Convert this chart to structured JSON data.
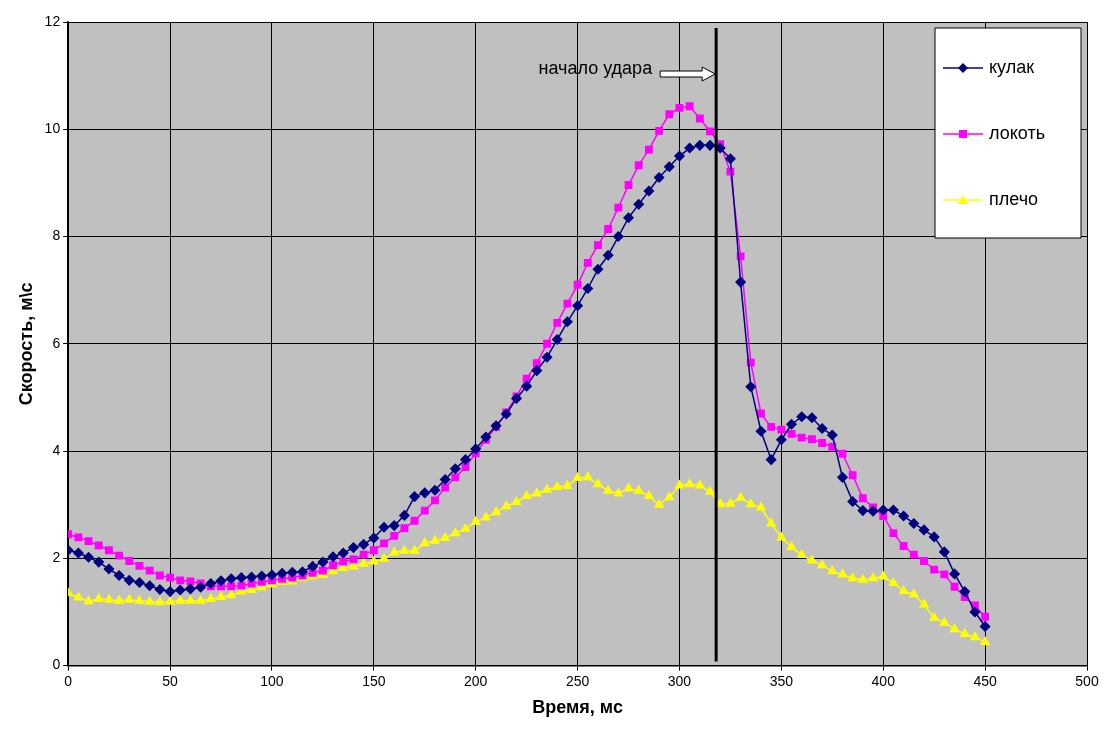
{
  "chart_data": {
    "type": "line",
    "xlabel": "Время, мс",
    "ylabel": "Скорость, м\\с",
    "x": [
      0,
      5,
      10,
      15,
      20,
      25,
      30,
      35,
      40,
      45,
      50,
      55,
      60,
      65,
      70,
      75,
      80,
      85,
      90,
      95,
      100,
      105,
      110,
      115,
      120,
      125,
      130,
      135,
      140,
      145,
      150,
      155,
      160,
      165,
      170,
      175,
      180,
      185,
      190,
      195,
      200,
      205,
      210,
      215,
      220,
      225,
      230,
      235,
      240,
      245,
      250,
      255,
      260,
      265,
      270,
      275,
      280,
      285,
      290,
      295,
      300,
      305,
      310,
      315,
      320,
      325,
      330,
      335,
      340,
      345,
      350,
      355,
      360,
      365,
      370,
      375,
      380,
      385,
      390,
      395,
      400,
      405,
      410,
      415,
      420,
      425,
      430,
      435,
      440,
      445,
      450
    ],
    "series": [
      {
        "name": "кулак",
        "color": "#000080",
        "marker": "diamond",
        "values": [
          2.15,
          2.1,
          2.02,
          1.93,
          1.8,
          1.68,
          1.59,
          1.55,
          1.49,
          1.42,
          1.38,
          1.41,
          1.43,
          1.46,
          1.53,
          1.58,
          1.62,
          1.64,
          1.65,
          1.67,
          1.69,
          1.72,
          1.74,
          1.75,
          1.85,
          1.93,
          2.03,
          2.1,
          2.2,
          2.26,
          2.38,
          2.58,
          2.61,
          2.8,
          3.15,
          3.22,
          3.27,
          3.47,
          3.67,
          3.84,
          4.04,
          4.26,
          4.47,
          4.69,
          4.98,
          5.21,
          5.5,
          5.75,
          6.08,
          6.41,
          6.71,
          7.03,
          7.39,
          7.65,
          8.0,
          8.35,
          8.6,
          8.85,
          9.1,
          9.3,
          9.5,
          9.65,
          9.7,
          9.7,
          9.65,
          9.45,
          7.15,
          5.2,
          4.37,
          3.84,
          4.21,
          4.5,
          4.64,
          4.62,
          4.42,
          4.3,
          3.51,
          3.06,
          2.89,
          2.88,
          2.9,
          2.9,
          2.79,
          2.65,
          2.53,
          2.4,
          2.12,
          1.71,
          1.38,
          1.0,
          0.73
        ]
      },
      {
        "name": "локоть",
        "color": "#ff00ff",
        "marker": "square",
        "values": [
          2.45,
          2.39,
          2.32,
          2.24,
          2.15,
          2.05,
          1.95,
          1.86,
          1.77,
          1.68,
          1.64,
          1.59,
          1.57,
          1.53,
          1.48,
          1.48,
          1.48,
          1.49,
          1.53,
          1.56,
          1.59,
          1.62,
          1.64,
          1.68,
          1.73,
          1.77,
          1.87,
          1.94,
          1.98,
          2.07,
          2.15,
          2.28,
          2.42,
          2.56,
          2.7,
          2.89,
          3.08,
          3.32,
          3.51,
          3.7,
          3.96,
          4.21,
          4.45,
          4.72,
          5.02,
          5.35,
          5.64,
          6.0,
          6.39,
          6.75,
          7.1,
          7.51,
          7.84,
          8.14,
          8.54,
          8.96,
          9.33,
          9.62,
          9.97,
          10.28,
          10.4,
          10.43,
          10.2,
          9.96,
          9.72,
          9.21,
          7.63,
          5.65,
          4.7,
          4.45,
          4.4,
          4.32,
          4.25,
          4.22,
          4.15,
          4.08,
          3.95,
          3.55,
          3.12,
          2.95,
          2.79,
          2.47,
          2.23,
          2.07,
          1.95,
          1.79,
          1.7,
          1.47,
          1.28,
          1.12,
          0.91
        ]
      },
      {
        "name": "плечо",
        "color": "#ffff00",
        "marker": "triangle",
        "values": [
          1.35,
          1.27,
          1.2,
          1.24,
          1.23,
          1.21,
          1.23,
          1.21,
          1.19,
          1.18,
          1.19,
          1.21,
          1.21,
          1.21,
          1.24,
          1.28,
          1.31,
          1.38,
          1.41,
          1.46,
          1.51,
          1.56,
          1.57,
          1.63,
          1.66,
          1.69,
          1.76,
          1.82,
          1.85,
          1.9,
          1.94,
          1.99,
          2.11,
          2.14,
          2.14,
          2.28,
          2.33,
          2.38,
          2.47,
          2.55,
          2.68,
          2.76,
          2.86,
          2.97,
          3.05,
          3.16,
          3.21,
          3.28,
          3.33,
          3.35,
          3.5,
          3.51,
          3.38,
          3.26,
          3.21,
          3.3,
          3.26,
          3.16,
          3.0,
          3.14,
          3.36,
          3.38,
          3.36,
          3.24,
          3.01,
          3.02,
          3.13,
          3.01,
          2.95,
          2.65,
          2.39,
          2.21,
          2.06,
          1.96,
          1.87,
          1.76,
          1.7,
          1.63,
          1.6,
          1.63,
          1.66,
          1.54,
          1.39,
          1.33,
          1.14,
          0.89,
          0.8,
          0.68,
          0.59,
          0.53,
          0.44
        ]
      }
    ],
    "xlim": [
      0,
      500
    ],
    "xticks": [
      0,
      50,
      100,
      150,
      200,
      250,
      300,
      350,
      400,
      450,
      500
    ],
    "ylim": [
      0,
      12
    ],
    "yticks": [
      0,
      2,
      4,
      6,
      8,
      10,
      12
    ],
    "grid": true,
    "legend": "top right",
    "line_style": "solid",
    "annotations": [
      "начало удара"
    ],
    "ref_lines": [
      {
        "axis": "x",
        "value": 318,
        "color": "#000000"
      }
    ]
  }
}
